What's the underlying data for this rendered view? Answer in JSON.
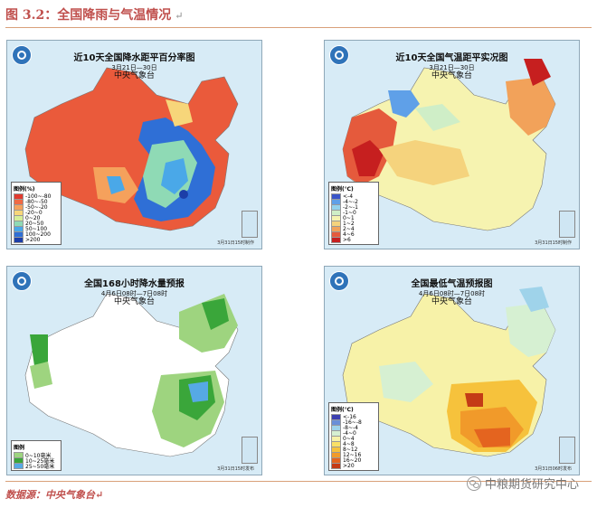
{
  "figure": {
    "title": "图 3.2：全国降雨与气温情况",
    "title_mark": "↵"
  },
  "panels": [
    {
      "id": "precip-anomaly",
      "title": "近10天全国降水距平百分率图",
      "date": "3月21日—30日",
      "issuer": "中央气象台",
      "legend_title": "图例(%)",
      "legend": [
        {
          "label": "-100~-80",
          "color": "#e23a2e"
        },
        {
          "label": "-80~-50",
          "color": "#f06a45"
        },
        {
          "label": "-50~-20",
          "color": "#f5a15c"
        },
        {
          "label": "-20~0",
          "color": "#f7d67a"
        },
        {
          "label": "0~20",
          "color": "#d6ef97"
        },
        {
          "label": "20~50",
          "color": "#8fdab5"
        },
        {
          "label": "50~100",
          "color": "#4aa8e8"
        },
        {
          "label": "100~200",
          "color": "#2f6fd6"
        },
        {
          "label": ">200",
          "color": "#1c3ea8"
        }
      ],
      "stamp": "3月31日15时制作"
    },
    {
      "id": "temp-anomaly",
      "title": "近10天全国气温距平实况图",
      "date": "3月21日—30日",
      "issuer": "中央气象台",
      "legend_title": "图例(℃)",
      "legend": [
        {
          "label": "<-4",
          "color": "#3a55c9"
        },
        {
          "label": "-4~-2",
          "color": "#5fa0e8"
        },
        {
          "label": "-2~-1",
          "color": "#93d2ec"
        },
        {
          "label": "-1~0",
          "color": "#cfeec7"
        },
        {
          "label": "0~1",
          "color": "#f6f3b0"
        },
        {
          "label": "1~2",
          "color": "#f5d37d"
        },
        {
          "label": "2~4",
          "color": "#f2a25a"
        },
        {
          "label": "4~6",
          "color": "#e55a3c"
        },
        {
          "label": ">6",
          "color": "#c61f1f"
        },
        {
          "label": "",
          "color": "#e32fd0"
        }
      ],
      "stamp": "3月31日15时制作"
    },
    {
      "id": "precip-forecast",
      "title": "全国168小时降水量预报",
      "date": "4月6日08时—7日08时",
      "issuer": "中央气象台",
      "legend_title": "图例",
      "legend": [
        {
          "label": "0~10毫米",
          "color": "#9ed47f"
        },
        {
          "label": "10~25毫米",
          "color": "#3aa63a"
        },
        {
          "label": "25~50毫米",
          "color": "#56a9e5"
        }
      ],
      "stamp": "3月31日15时发布"
    },
    {
      "id": "min-temp-forecast",
      "title": "全国最低气温预报图",
      "date": "4月6日08时—7日08时",
      "issuer": "中央气象台",
      "legend_title": "图例(℃)",
      "legend": [
        {
          "label": "<-16",
          "color": "#3b3fb0"
        },
        {
          "label": "-16~-8",
          "color": "#6a8fd8"
        },
        {
          "label": "-8~-4",
          "color": "#9fd3ea"
        },
        {
          "label": "-4~0",
          "color": "#d6f0d2"
        },
        {
          "label": "0~4",
          "color": "#f7f2a8"
        },
        {
          "label": "4~8",
          "color": "#f9e066"
        },
        {
          "label": "8~12",
          "color": "#f6c23c"
        },
        {
          "label": "12~16",
          "color": "#f19a2a"
        },
        {
          "label": "16~20",
          "color": "#e4641f"
        },
        {
          "label": ">20",
          "color": "#c43b16"
        }
      ],
      "stamp": "3月31日06时发布"
    }
  ],
  "footer": {
    "source": "数据源：中央气象台↵",
    "watermark": "中粮期货研究中心"
  }
}
